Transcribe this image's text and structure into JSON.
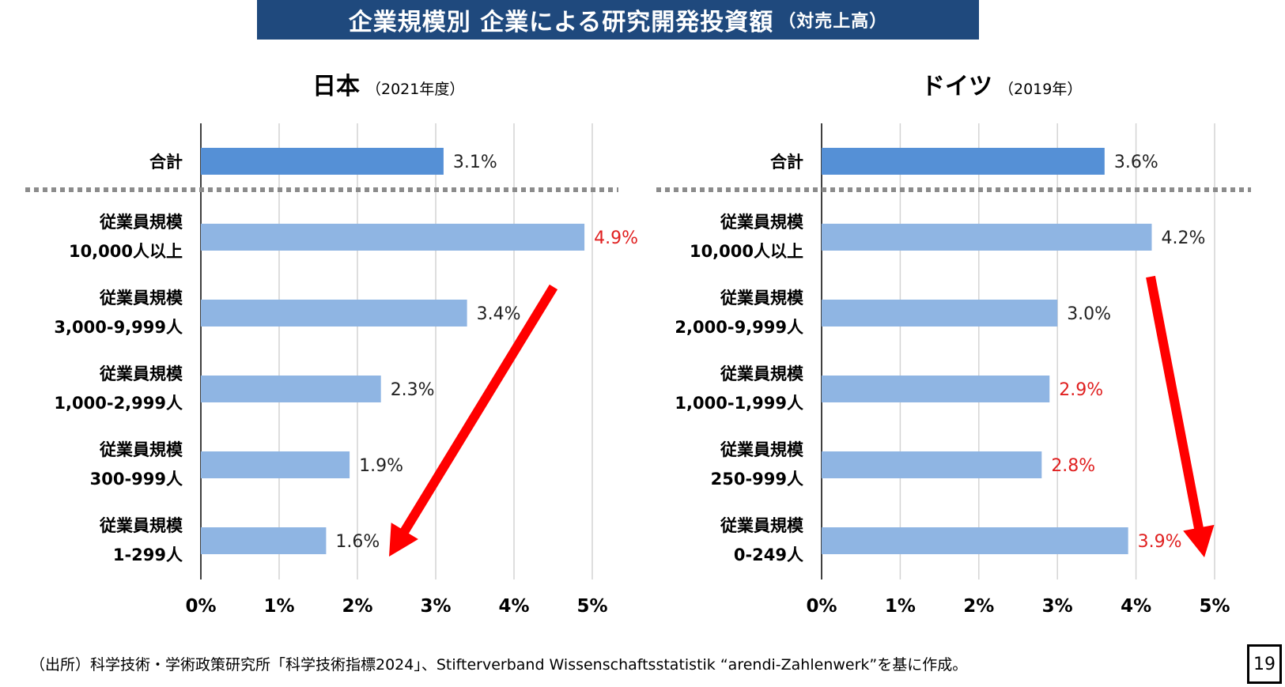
{
  "title": {
    "main": "企業規模別 企業による研究開発投資額",
    "suffix": "（対売上高）"
  },
  "footnote": "（出所）科学技術・学術政策研究所「科学技術指標2024」、Stifterverband Wissenschaftsstatistik “arendi-Zahlenwerk”を基に作成。",
  "page_number": "19",
  "colors": {
    "banner": "#1F497D",
    "total_bar": "#5590D6",
    "bar": "#8FB5E3",
    "highlight": "#E02020",
    "arrow": "#FF0000",
    "grid": "#D4D4D4",
    "separator": "#8C8C8C"
  },
  "chart_data": [
    {
      "type": "bar",
      "orientation": "horizontal",
      "country": "日本",
      "year_label": "（2021年度）",
      "categories": [
        [
          "合計"
        ],
        [
          "従業員規模",
          "10,000人以上"
        ],
        [
          "従業員規模",
          "3,000-9,999人"
        ],
        [
          "従業員規模",
          "1,000-2,999人"
        ],
        [
          "従業員規模",
          "300-999人"
        ],
        [
          "従業員規模",
          "1-299人"
        ]
      ],
      "values": [
        3.1,
        4.9,
        3.4,
        2.3,
        1.9,
        1.6
      ],
      "value_labels": [
        "3.1%",
        "4.9%",
        "3.4%",
        "2.3%",
        "1.9%",
        "1.6%"
      ],
      "highlighted": [
        false,
        true,
        false,
        false,
        false,
        false
      ],
      "xlim": [
        0,
        5
      ],
      "xticks": [
        "0%",
        "1%",
        "2%",
        "3%",
        "4%",
        "5%"
      ],
      "grid": true,
      "annotation": "red arrow from 10,000人以上 toward 1-299人 showing decrease"
    },
    {
      "type": "bar",
      "orientation": "horizontal",
      "country": "ドイツ",
      "year_label": "（2019年）",
      "categories": [
        [
          "合計"
        ],
        [
          "従業員規模",
          "10,000人以上"
        ],
        [
          "従業員規模",
          "2,000-9,999人"
        ],
        [
          "従業員規模",
          "1,000-1,999人"
        ],
        [
          "従業員規模",
          "250-999人"
        ],
        [
          "従業員規模",
          "0-249人"
        ]
      ],
      "values": [
        3.6,
        4.2,
        3.0,
        2.9,
        2.8,
        3.9
      ],
      "value_labels": [
        "3.6%",
        "4.2%",
        "3.0%",
        "2.9%",
        "2.8%",
        "3.9%"
      ],
      "highlighted": [
        false,
        false,
        false,
        true,
        true,
        true
      ],
      "xlim": [
        0,
        5
      ],
      "xticks": [
        "0%",
        "1%",
        "2%",
        "3%",
        "4%",
        "5%"
      ],
      "grid": true,
      "annotation": "red arrow from 10,000人以上 downward toward 0-249人"
    }
  ]
}
